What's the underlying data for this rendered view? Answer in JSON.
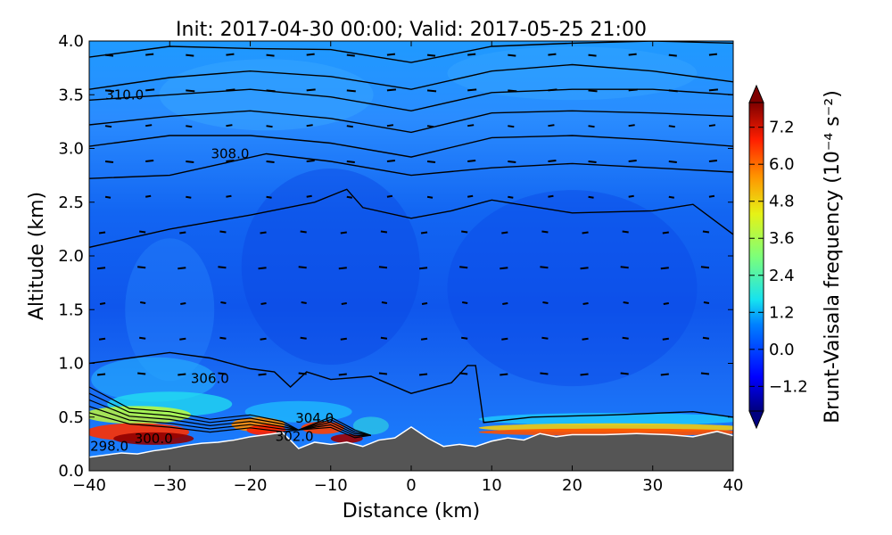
{
  "chart_data": {
    "type": "heatmap",
    "title": "Init: 2017-04-30 00:00; Valid: 2017-05-25 21:00",
    "xlabel": "Distance (km)",
    "ylabel": "Altitude (km)",
    "xlim": [
      -40,
      40
    ],
    "ylim": [
      0,
      4
    ],
    "xticks": [
      "−40",
      "−30",
      "−20",
      "−10",
      "0",
      "10",
      "20",
      "30",
      "40"
    ],
    "yticks": [
      "0.0",
      "0.5",
      "1.0",
      "1.5",
      "2.0",
      "2.5",
      "3.0",
      "3.5",
      "4.0"
    ],
    "colorbar": {
      "label": "Brunt-Vaisala frequency (10⁻⁴ s⁻²)",
      "range": [
        -2.0,
        8.0
      ],
      "extend": "both",
      "ticks": [
        "−1.2",
        "0.0",
        "1.2",
        "2.4",
        "3.6",
        "4.8",
        "6.0",
        "7.2"
      ],
      "colormap": "jet"
    },
    "contour_labels": [
      {
        "text": "310.0",
        "x": -35.6,
        "y": 3.5
      },
      {
        "text": "308.0",
        "x": -22.5,
        "y": 2.95
      },
      {
        "text": "306.0",
        "x": -25.0,
        "y": 0.86
      },
      {
        "text": "304.0",
        "x": -12.0,
        "y": 0.49
      },
      {
        "text": "302.0",
        "x": -14.5,
        "y": 0.32
      },
      {
        "text": "300.0",
        "x": -32.0,
        "y": 0.3
      },
      {
        "text": "298.0",
        "x": -37.5,
        "y": 0.23
      }
    ],
    "isentropes": [
      {
        "points": [
          [
            -40,
            3.85
          ],
          [
            -30,
            3.95
          ],
          [
            -20,
            3.93
          ],
          [
            -10,
            3.92
          ],
          [
            0,
            3.8
          ],
          [
            10,
            3.95
          ],
          [
            20,
            3.98
          ],
          [
            30,
            4.0
          ],
          [
            40,
            3.98
          ]
        ]
      },
      {
        "points": [
          [
            -40,
            3.55
          ],
          [
            -30,
            3.66
          ],
          [
            -20,
            3.72
          ],
          [
            -10,
            3.67
          ],
          [
            0,
            3.55
          ],
          [
            10,
            3.72
          ],
          [
            20,
            3.78
          ],
          [
            30,
            3.72
          ],
          [
            40,
            3.62
          ]
        ]
      },
      {
        "points": [
          [
            -40,
            3.45
          ],
          [
            -30,
            3.5
          ],
          [
            -20,
            3.55
          ],
          [
            -10,
            3.48
          ],
          [
            0,
            3.35
          ],
          [
            10,
            3.52
          ],
          [
            20,
            3.55
          ],
          [
            30,
            3.55
          ],
          [
            40,
            3.5
          ]
        ]
      },
      {
        "points": [
          [
            -40,
            3.22
          ],
          [
            -30,
            3.3
          ],
          [
            -20,
            3.35
          ],
          [
            -10,
            3.28
          ],
          [
            0,
            3.15
          ],
          [
            10,
            3.33
          ],
          [
            20,
            3.35
          ],
          [
            30,
            3.33
          ],
          [
            40,
            3.3
          ]
        ]
      },
      {
        "points": [
          [
            -40,
            3.02
          ],
          [
            -30,
            3.12
          ],
          [
            -20,
            3.12
          ],
          [
            -10,
            3.05
          ],
          [
            0,
            2.92
          ],
          [
            10,
            3.1
          ],
          [
            20,
            3.12
          ],
          [
            30,
            3.08
          ],
          [
            40,
            3.02
          ]
        ]
      },
      {
        "points": [
          [
            -40,
            2.72
          ],
          [
            -30,
            2.75
          ],
          [
            -24,
            2.85
          ],
          [
            -18,
            2.95
          ],
          [
            -10,
            2.88
          ],
          [
            0,
            2.75
          ],
          [
            10,
            2.82
          ],
          [
            20,
            2.86
          ],
          [
            30,
            2.82
          ],
          [
            40,
            2.78
          ]
        ]
      },
      {
        "points": [
          [
            -40,
            2.08
          ],
          [
            -30,
            2.25
          ],
          [
            -20,
            2.38
          ],
          [
            -12,
            2.5
          ],
          [
            -8,
            2.62
          ],
          [
            -6,
            2.45
          ],
          [
            0,
            2.35
          ],
          [
            5,
            2.42
          ],
          [
            10,
            2.52
          ],
          [
            20,
            2.4
          ],
          [
            30,
            2.42
          ],
          [
            35,
            2.48
          ],
          [
            40,
            2.2
          ]
        ]
      },
      {
        "points": [
          [
            -40,
            1.0
          ],
          [
            -35,
            1.05
          ],
          [
            -30,
            1.1
          ],
          [
            -25,
            1.05
          ],
          [
            -20,
            0.95
          ],
          [
            -17,
            0.92
          ],
          [
            -15,
            0.78
          ],
          [
            -13,
            0.92
          ],
          [
            -10,
            0.85
          ],
          [
            -5,
            0.88
          ],
          [
            0,
            0.72
          ],
          [
            5,
            0.82
          ],
          [
            7,
            0.98
          ],
          [
            8,
            0.98
          ],
          [
            9,
            0.45
          ],
          [
            15,
            0.5
          ],
          [
            25,
            0.52
          ],
          [
            35,
            0.55
          ],
          [
            40,
            0.5
          ]
        ]
      }
    ]
  }
}
